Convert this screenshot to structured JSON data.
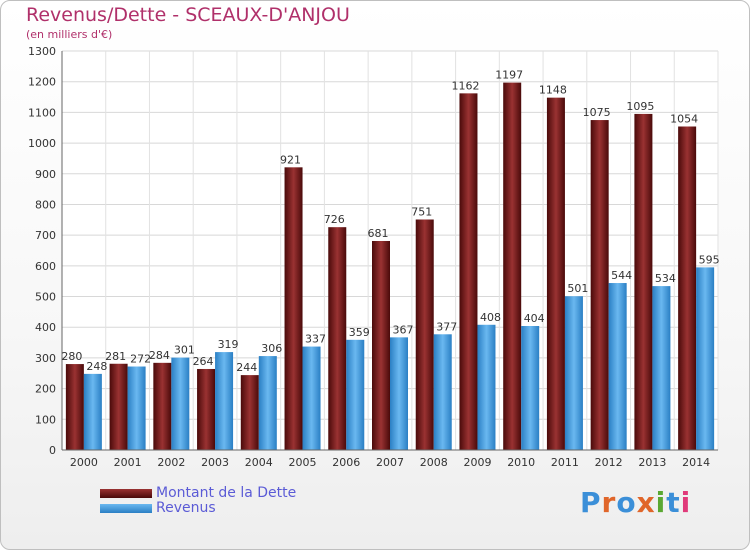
{
  "header": {
    "title": "Revenus/Dette - SCEAUX-D'ANJOU",
    "subtitle": "(en milliers d'€)"
  },
  "logo": {
    "text": "Proxiti",
    "colors": [
      "#3b8fd8",
      "#e0662a",
      "#3b8fd8",
      "#e0662a",
      "#5aa832",
      "#3b8fd8",
      "#e03a7a"
    ]
  },
  "legend": {
    "items": [
      {
        "label": "Montant de la Dette",
        "color": "#7a1a1a"
      },
      {
        "label": "Revenus",
        "color": "#3a98dc"
      }
    ]
  },
  "chart_data": {
    "type": "bar",
    "title": "Revenus/Dette - SCEAUX-D'ANJOU",
    "subtitle": "(en milliers d'€)",
    "categories": [
      "2000",
      "2001",
      "2002",
      "2003",
      "2004",
      "2005",
      "2006",
      "2007",
      "2008",
      "2009",
      "2010",
      "2011",
      "2012",
      "2013",
      "2014"
    ],
    "series": [
      {
        "name": "Montant de la Dette",
        "color": "#7a1a1a",
        "values": [
          280,
          281,
          284,
          264,
          244,
          921,
          726,
          681,
          751,
          1162,
          1197,
          1148,
          1075,
          1095,
          1054
        ]
      },
      {
        "name": "Revenus",
        "color": "#3a98dc",
        "values": [
          248,
          272,
          301,
          319,
          306,
          337,
          359,
          367,
          377,
          408,
          404,
          501,
          544,
          534,
          595
        ]
      }
    ],
    "ylim": [
      0,
      1300
    ],
    "yticks": [
      0,
      100,
      200,
      300,
      400,
      500,
      600,
      700,
      800,
      900,
      1000,
      1100,
      1200,
      1300
    ],
    "grid": true,
    "legend_position": "bottom-left"
  }
}
